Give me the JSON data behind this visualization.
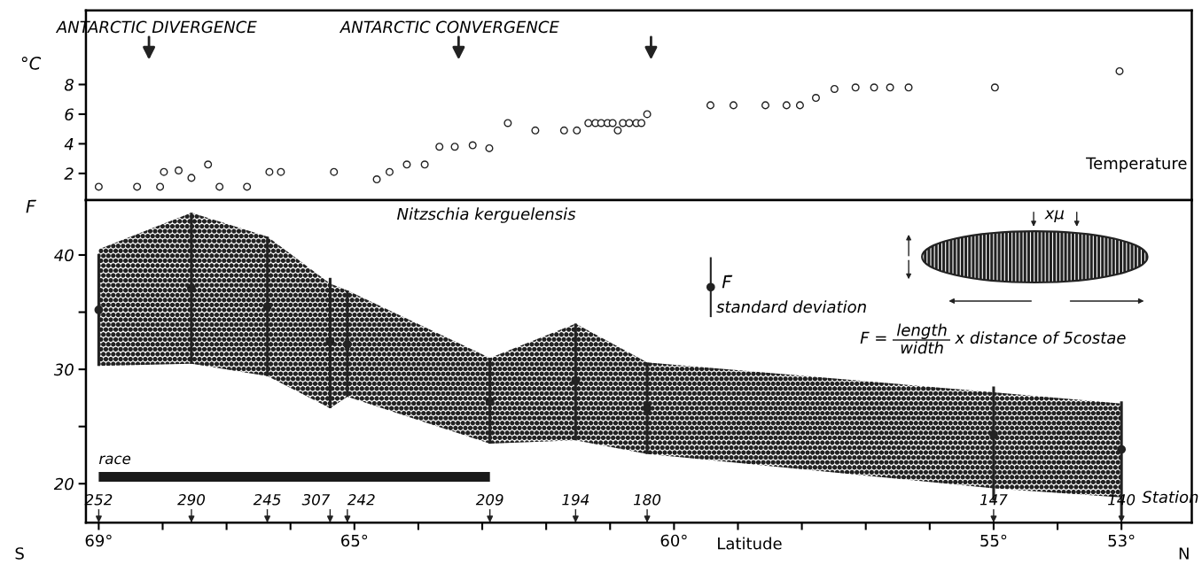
{
  "chart_data": [
    {
      "type": "scatter",
      "ylabel": "°C",
      "xlim": [
        69.2,
        51.9
      ],
      "ylim": [
        0.2,
        13
      ],
      "yticks": [
        2,
        4,
        6,
        8
      ],
      "tick_labels": "y",
      "marker": "circle",
      "series": [
        {
          "color": "#222222",
          "x": [
            69.0,
            68.4,
            68.04,
            67.98,
            67.75,
            67.55,
            67.29,
            67.11,
            66.68,
            66.33,
            66.15,
            65.32,
            64.65,
            64.45,
            64.18,
            63.9,
            63.67,
            63.43,
            63.15,
            62.89,
            62.6,
            62.17,
            61.72,
            61.52,
            61.34,
            61.23,
            61.14,
            61.04,
            60.96,
            60.88,
            60.8,
            60.7,
            60.59,
            60.51,
            60.42,
            59.43,
            59.07,
            58.57,
            58.24,
            58.03,
            57.78,
            57.49,
            57.16,
            56.87,
            56.62,
            56.33,
            54.98,
            53.03
          ],
          "values": [
            1.1,
            1.1,
            1.1,
            2.1,
            2.2,
            1.7,
            2.6,
            1.1,
            1.1,
            2.1,
            2.1,
            2.1,
            1.6,
            2.1,
            2.6,
            2.6,
            3.8,
            3.8,
            3.9,
            3.7,
            5.4,
            4.9,
            4.9,
            4.9,
            5.4,
            5.4,
            5.4,
            5.4,
            5.4,
            4.9,
            5.4,
            5.4,
            5.4,
            5.4,
            6.0,
            6.6,
            6.6,
            6.6,
            6.6,
            6.6,
            7.1,
            7.7,
            7.8,
            7.8,
            7.8,
            7.8,
            7.8,
            8.9
          ]
        }
      ],
      "annotations": [
        "ANTARCTIC DIVERGENCE",
        "ANTARCTIC CONVERGENCE",
        "Temperature"
      ]
    },
    {
      "type": "scatter",
      "xlabel": "Latitude",
      "ylabel": "F̄",
      "xlim": [
        69.2,
        51.9
      ],
      "ylim": [
        16.6,
        44.8
      ],
      "marker": "circle",
      "xticks": [
        {
          "value": 69,
          "label": "69°"
        },
        {
          "value": 68,
          "label": null
        },
        {
          "value": 67,
          "label": null
        },
        {
          "value": 66,
          "label": null
        },
        {
          "value": 65,
          "label": "65°"
        },
        {
          "value": 64,
          "label": null
        },
        {
          "value": 63,
          "label": null
        },
        {
          "value": 62,
          "label": null
        },
        {
          "value": 61,
          "label": null
        },
        {
          "value": 60,
          "label": "60°"
        },
        {
          "value": 59,
          "label": null
        },
        {
          "value": 58,
          "label": null
        },
        {
          "value": 57,
          "label": null
        },
        {
          "value": 56,
          "label": null
        },
        {
          "value": 55,
          "label": "55°"
        },
        {
          "value": 54,
          "label": null
        },
        {
          "value": 53,
          "label": "53°"
        }
      ],
      "yticks": [
        20,
        {
          "value": 25,
          "label": null
        },
        30,
        {
          "value": 35,
          "label": null
        },
        40
      ],
      "series": [
        {
          "name": "F̄",
          "color": "#222222",
          "x": [
            69.0,
            67.55,
            66.36,
            65.38,
            65.11,
            62.88,
            61.54,
            60.42,
            55.0,
            53.0
          ],
          "values": [
            35.2,
            37.1,
            35.5,
            32.4,
            32.2,
            27.2,
            29.0,
            26.6,
            24.3,
            23.0
          ],
          "errors": [
            [
              30.3,
              40.1
            ],
            [
              30.5,
              43.7
            ],
            [
              29.4,
              41.6
            ],
            [
              26.6,
              38.0
            ],
            [
              27.6,
              36.9
            ],
            [
              23.5,
              31.0
            ],
            [
              23.8,
              34.0
            ],
            [
              22.6,
              30.6
            ],
            [
              18.5,
              28.5
            ],
            [
              17.0,
              27.2
            ]
          ],
          "lower": [
            30.3,
            30.5,
            29.4,
            26.6,
            27.6,
            23.5,
            23.8,
            22.6,
            19.6,
            18.8
          ],
          "upper": [
            40.5,
            43.7,
            41.6,
            37.5,
            36.9,
            31.0,
            34.0,
            30.6,
            28.0,
            27.0
          ]
        },
        {
          "name": "race",
          "type": "line",
          "marker": "none",
          "color": "#1a1a1a",
          "x": [
            69.0,
            62.88
          ],
          "values": [
            20.6,
            20.6
          ]
        }
      ],
      "annotations": [
        "252",
        "290",
        "245",
        "307",
        "242",
        "209",
        "194",
        "180",
        "147",
        "140",
        "Station",
        "Nitzschia kerguelensis",
        "standard deviation",
        "F =",
        "length",
        "width",
        "x distance of 5costae",
        "xμ",
        "S",
        "N"
      ]
    }
  ]
}
